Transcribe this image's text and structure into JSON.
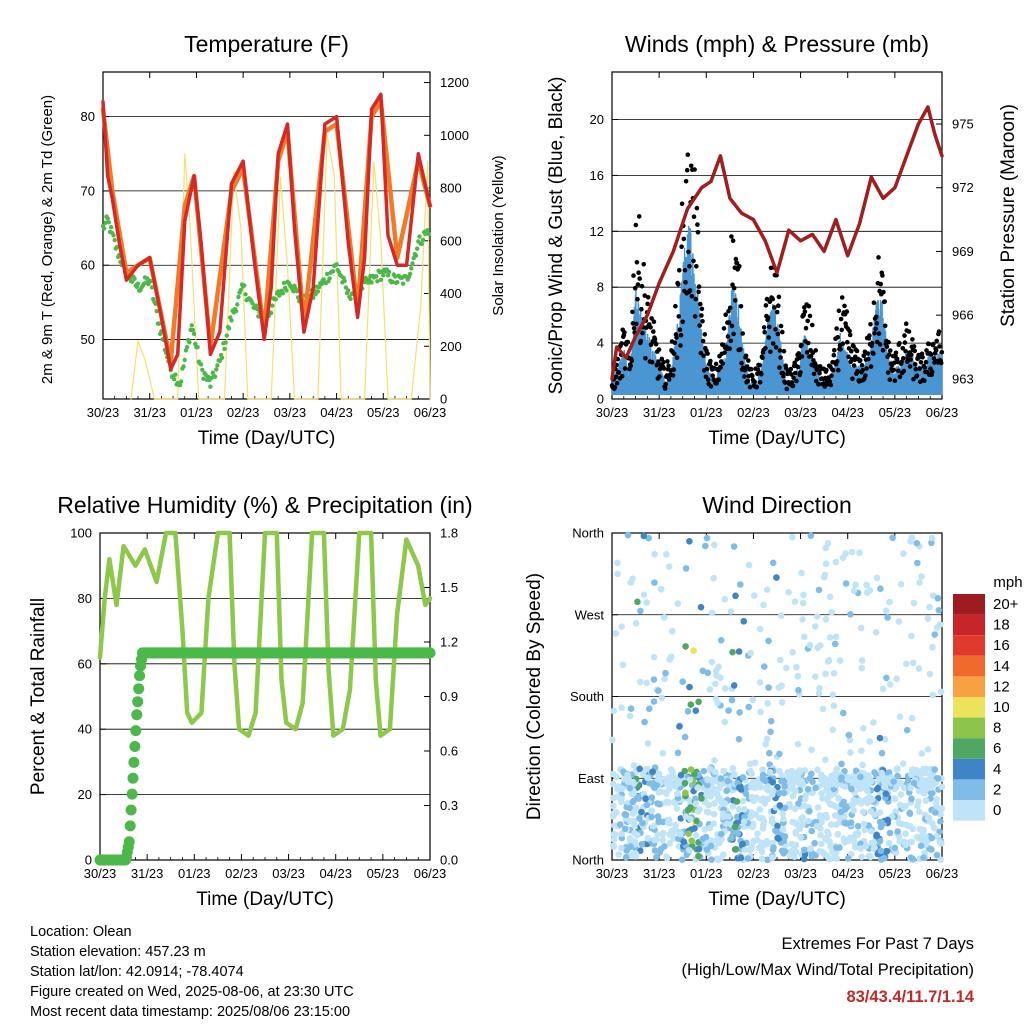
{
  "x_ticks": [
    "30/23",
    "31/23",
    "01/23",
    "02/23",
    "03/23",
    "04/23",
    "05/23",
    "06/23"
  ],
  "x_label": "Time (Day/UTC)",
  "info": {
    "location": "Location: Olean",
    "elevation": "Station elevation: 457.23 m",
    "latlon": "Station lat/lon: 42.0914; -78.4074",
    "created": "Figure created on Wed, 2025-08-06, at 23:30 UTC",
    "recent": "Most recent data timestamp: 2025/08/06 23:15:00"
  },
  "extremes": {
    "title": "Extremes For Past 7 Days",
    "subtitle": "(High/Low/Max Wind/Total Precipitation)",
    "values": "83/43.4/11.7/1.14"
  },
  "chart_data": [
    {
      "type": "line",
      "title": "Temperature (F)",
      "xlabel": "Time (Day/UTC)",
      "ylabel": "2m & 9m T (Red, Orange) & 2m Td (Green)",
      "y2label": "Solar Insolation (Yellow)",
      "ylim": [
        42,
        86
      ],
      "yticks": [
        50,
        60,
        70,
        80
      ],
      "y2lim": [
        0,
        1240
      ],
      "y2ticks": [
        0,
        200,
        400,
        600,
        800,
        1000,
        1200
      ],
      "xlim": [
        0,
        7
      ],
      "series": [
        {
          "name": "2m T",
          "color": "#d42a25",
          "x": [
            0,
            0.1,
            0.2,
            0.35,
            0.5,
            0.75,
            1,
            1.25,
            1.45,
            1.6,
            1.75,
            1.95,
            2.1,
            2.3,
            2.5,
            2.75,
            3,
            3.25,
            3.45,
            3.6,
            3.75,
            3.95,
            4.1,
            4.3,
            4.5,
            4.75,
            5,
            5.25,
            5.45,
            5.6,
            5.75,
            5.95,
            6.1,
            6.3,
            6.5,
            6.75,
            7
          ],
          "y": [
            82,
            72,
            69,
            63,
            58,
            60,
            61,
            53,
            46,
            48,
            66,
            72,
            63,
            48,
            51,
            71,
            74,
            60,
            50,
            57,
            75,
            79,
            65,
            51,
            57,
            79,
            80,
            63,
            53,
            61,
            81,
            83,
            64,
            60,
            60,
            75,
            68
          ]
        },
        {
          "name": "9m T",
          "color": "#f07a28",
          "x": [
            0,
            0.2,
            0.5,
            1,
            1.45,
            1.75,
            1.95,
            2.3,
            2.75,
            3,
            3.45,
            3.75,
            3.95,
            4.3,
            4.75,
            5,
            5.45,
            5.75,
            5.95,
            6.3,
            6.75,
            7
          ],
          "y": [
            81,
            70,
            59,
            61,
            47,
            68,
            72,
            49,
            70,
            73,
            51,
            74,
            78,
            52,
            78,
            79,
            54,
            80,
            82,
            61,
            74,
            68
          ]
        },
        {
          "name": "2m Td",
          "color": "#4db84a",
          "x": [
            0,
            0.1,
            0.3,
            0.5,
            0.75,
            1,
            1.2,
            1.45,
            1.65,
            1.9,
            2.1,
            2.3,
            2.5,
            2.75,
            3,
            3.25,
            3.5,
            3.75,
            4,
            4.25,
            4.5,
            4.75,
            5,
            5.25,
            5.5,
            5.75,
            6,
            6.25,
            6.5,
            6.75,
            7
          ],
          "y": [
            65,
            66,
            62,
            59,
            57,
            58,
            52,
            46,
            44,
            52,
            46,
            44,
            47,
            53,
            57,
            54,
            53,
            56,
            58,
            55,
            56,
            58,
            60,
            56,
            57,
            58,
            59,
            58,
            58,
            63,
            65
          ]
        },
        {
          "name": "Solar Insolation",
          "color": "#f5e070",
          "axis": "y2",
          "x": [
            0.6,
            0.75,
            0.9,
            1.1,
            1.6,
            1.75,
            1.85,
            2.05,
            2.6,
            2.8,
            2.95,
            3.1,
            3.6,
            3.8,
            3.95,
            4.1,
            4.6,
            4.8,
            4.95,
            5.1,
            5.6,
            5.8,
            5.95,
            6.1,
            6.6,
            6.8,
            6.95,
            7
          ],
          "y": [
            0,
            220,
            150,
            0,
            0,
            930,
            700,
            0,
            0,
            860,
            650,
            0,
            0,
            840,
            500,
            0,
            0,
            1000,
            850,
            0,
            0,
            900,
            600,
            0,
            0,
            350,
            900,
            0
          ]
        }
      ]
    },
    {
      "type": "scatter",
      "title": "Winds (mph) & Pressure (mb)",
      "xlabel": "Time (Day/UTC)",
      "ylabel": "Sonic/Prop Wind & Gust (Blue, Black)",
      "y2label": "Station Pressure (Maroon)",
      "ylim": [
        0,
        23.4
      ],
      "yticks": [
        0,
        4,
        8,
        12,
        16,
        20
      ],
      "y2lim": [
        962.05,
        977.45
      ],
      "y2ticks": [
        963,
        966,
        969,
        972,
        975
      ],
      "xlim": [
        0,
        7
      ],
      "series": [
        {
          "name": "Station Pressure",
          "color": "#a11e1e",
          "axis": "y2",
          "x": [
            0,
            0.1,
            0.3,
            0.5,
            0.75,
            1,
            1.3,
            1.6,
            1.9,
            2.1,
            2.3,
            2.5,
            2.75,
            3,
            3.25,
            3.5,
            3.75,
            4,
            4.25,
            4.5,
            4.75,
            5,
            5.25,
            5.5,
            5.75,
            6,
            6.25,
            6.5,
            6.7,
            6.85,
            7
          ],
          "y": [
            963,
            964.5,
            964,
            965,
            966,
            967.5,
            969,
            971,
            972,
            972.3,
            973.5,
            971.5,
            970.8,
            970.5,
            969.5,
            968,
            970,
            969.5,
            969.8,
            969,
            970.5,
            968.8,
            970.3,
            972.5,
            971.5,
            972,
            973.5,
            975,
            975.8,
            974.5,
            973.5
          ]
        },
        {
          "name": "Gust",
          "color": "#000000",
          "env": [
            1,
            3,
            5,
            3,
            14,
            10,
            7,
            5,
            3,
            2,
            4,
            8,
            15,
            18,
            14,
            6,
            3,
            2,
            3,
            6,
            12,
            10,
            4,
            2,
            2,
            3,
            8,
            10,
            6,
            2,
            2,
            3,
            7,
            6,
            3,
            2,
            2,
            3,
            7,
            6,
            4,
            3,
            3,
            5,
            10,
            9,
            4,
            3,
            4,
            5,
            4,
            3,
            3,
            4,
            5,
            4
          ]
        },
        {
          "name": "Wind",
          "color": "#4a97d3",
          "env": [
            1,
            2,
            3,
            2,
            7,
            5,
            4,
            3,
            2,
            1,
            2,
            5,
            9,
            11,
            8,
            4,
            2,
            1,
            2,
            3,
            7,
            6,
            3,
            1,
            1,
            2,
            5,
            6,
            4,
            1,
            1,
            2,
            4,
            3,
            2,
            1,
            1,
            2,
            4,
            3,
            2,
            2,
            2,
            3,
            6,
            6,
            3,
            2,
            2,
            3,
            3,
            2,
            2,
            3,
            3,
            3
          ]
        }
      ]
    },
    {
      "type": "line",
      "title": "Relative Humidity (%) & Precipitation (in)",
      "xlabel": "Time (Day/UTC)",
      "ylabel": "Percent & Total Rainfall",
      "ylim": [
        0,
        100
      ],
      "yticks": [
        0,
        20,
        40,
        60,
        80,
        100
      ],
      "y2lim": [
        0,
        1.8
      ],
      "y2ticks": [
        "0.0",
        "0.3",
        "0.6",
        "0.9",
        "1.2",
        "1.5",
        "1.8"
      ],
      "xlim": [
        0,
        7
      ],
      "series": [
        {
          "name": "Relative Humidity",
          "color": "#8dc84a",
          "x": [
            0,
            0.1,
            0.2,
            0.35,
            0.5,
            0.75,
            0.95,
            1.2,
            1.4,
            1.6,
            1.75,
            1.85,
            1.95,
            2.15,
            2.3,
            2.5,
            2.75,
            2.85,
            2.95,
            3.15,
            3.3,
            3.5,
            3.75,
            3.85,
            3.95,
            4.15,
            4.3,
            4.5,
            4.75,
            4.85,
            4.95,
            5.15,
            5.3,
            5.5,
            5.75,
            5.85,
            5.95,
            6.15,
            6.3,
            6.5,
            6.75,
            6.9,
            7
          ],
          "y": [
            62,
            80,
            92,
            78,
            96,
            90,
            95,
            85,
            100,
            100,
            70,
            45,
            42,
            45,
            80,
            100,
            100,
            60,
            40,
            38,
            45,
            100,
            100,
            55,
            42,
            40,
            48,
            100,
            100,
            58,
            38,
            40,
            52,
            100,
            100,
            55,
            38,
            40,
            75,
            98,
            90,
            78,
            80
          ]
        },
        {
          "name": "Total Rainfall",
          "color": "#4db84a",
          "axis": "y2",
          "x": [
            0,
            0.55,
            0.62,
            0.7,
            0.78,
            0.85,
            0.9,
            7
          ],
          "y": [
            0,
            0,
            0.1,
            0.45,
            0.8,
            1.05,
            1.14,
            1.14
          ]
        }
      ]
    },
    {
      "type": "scatter",
      "title": "Wind Direction",
      "xlabel": "Time (Day/UTC)",
      "ylabel": "Direction (Colored By Speed)",
      "yticks": [
        "North",
        "East",
        "South",
        "West",
        "North"
      ],
      "xlim": [
        0,
        7
      ],
      "legend": {
        "title": "mph",
        "labels": [
          "20+",
          "18",
          "16",
          "14",
          "12",
          "10",
          "8",
          "6",
          "4",
          "2",
          "0"
        ],
        "colors": [
          "#9e1b20",
          "#c7252a",
          "#e03a2e",
          "#f06a2c",
          "#f7a242",
          "#ece35a",
          "#8cc44c",
          "#4fa761",
          "#3f84c4",
          "#7fbde8",
          "#bfe3f7"
        ]
      }
    }
  ]
}
